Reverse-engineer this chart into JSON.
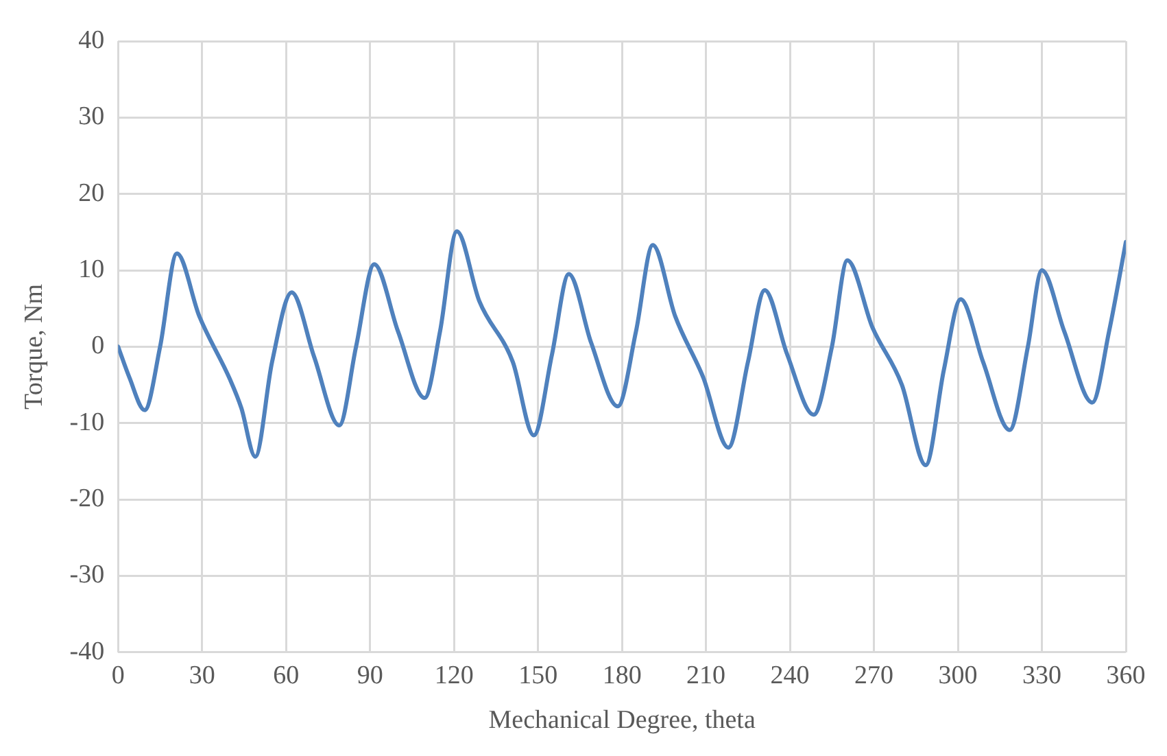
{
  "chart_data": {
    "type": "line",
    "xlabel": "Mechanical Degree, theta",
    "ylabel": "Torque, Nm",
    "x": [
      0,
      4,
      9.5,
      15,
      21,
      29,
      40,
      44,
      49,
      55,
      62,
      70,
      79,
      85,
      91.5,
      100,
      109.5,
      115,
      121,
      129,
      141,
      148.5,
      155,
      161,
      169,
      178.5,
      185,
      191,
      199,
      209,
      218,
      225,
      231,
      239,
      248.5,
      255,
      260.5,
      269.5,
      280,
      288.5,
      295,
      301,
      309,
      318.5,
      325,
      330,
      338,
      348,
      354,
      360
    ],
    "series": [
      {
        "color": "#4f81bd",
        "values": [
          0,
          -4,
          -8.3,
          0,
          12.2,
          4,
          -4.3,
          -8,
          -14.4,
          -2,
          7.1,
          -1.3,
          -10.3,
          0,
          10.8,
          2,
          -6.7,
          2,
          15.1,
          6,
          -2,
          -11.6,
          -1,
          9.5,
          0.5,
          -7.8,
          2,
          13.3,
          4,
          -4,
          -13.2,
          -2,
          7.4,
          -1,
          -8.9,
          0,
          11.3,
          2.5,
          -5,
          -15.5,
          -3,
          6.2,
          -2,
          -10.9,
          0,
          10,
          2,
          -7.3,
          2,
          13.7
        ]
      }
    ],
    "xlim": [
      0,
      360
    ],
    "xticks": [
      0,
      30,
      60,
      90,
      120,
      150,
      180,
      210,
      240,
      270,
      300,
      330,
      360
    ],
    "ylim": [
      -40,
      40
    ],
    "yticks": [
      -40,
      -30,
      -20,
      -10,
      0,
      10,
      20,
      30,
      40
    ],
    "grid": true,
    "legend": false,
    "marker": "none",
    "line_style": "solid"
  }
}
